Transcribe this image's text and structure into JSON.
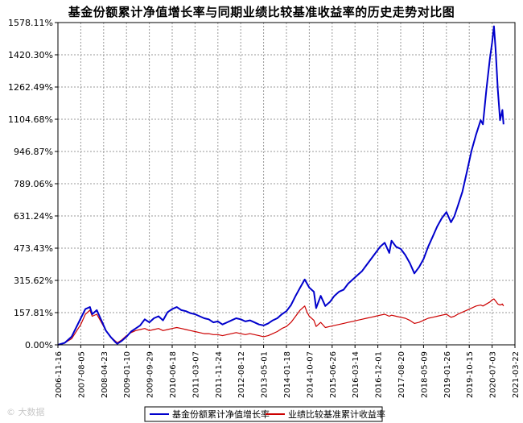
{
  "chart_data": {
    "type": "line",
    "title": "基金份额累计净值增长率与同期业绩比较基准收益率的历史走势对比图",
    "xlabel": "",
    "ylabel": "",
    "y_ticks": [
      "0.00%",
      "157.81%",
      "315.62%",
      "473.43%",
      "631.24%",
      "789.06%",
      "946.87%",
      "1104.68%",
      "1262.49%",
      "1420.30%",
      "1578.11%"
    ],
    "x_ticks": [
      "2006-11-16",
      "2007-08-05",
      "2008-04-23",
      "2009-01-10",
      "2009-09-29",
      "2010-06-18",
      "2011-03-07",
      "2011-11-24",
      "2012-08-12",
      "2013-05-01",
      "2014-01-18",
      "2014-10-07",
      "2015-06-26",
      "2016-03-14",
      "2016-12-01",
      "2017-08-20",
      "2018-05-09",
      "2019-01-26",
      "2019-10-15",
      "2020-07-03",
      "2021-03-22"
    ],
    "ylim": [
      0,
      1578.11
    ],
    "grid": true,
    "legend_position": "bottom",
    "series": [
      {
        "name": "基金份额累计净值增长率",
        "color": "#0000cc",
        "points": [
          [
            0,
            0
          ],
          [
            0.3,
            10
          ],
          [
            0.6,
            40
          ],
          [
            1.0,
            130
          ],
          [
            1.2,
            175
          ],
          [
            1.4,
            185
          ],
          [
            1.5,
            150
          ],
          [
            1.7,
            170
          ],
          [
            1.9,
            120
          ],
          [
            2.1,
            70
          ],
          [
            2.3,
            40
          ],
          [
            2.5,
            15
          ],
          [
            2.6,
            5
          ],
          [
            2.8,
            20
          ],
          [
            3.0,
            40
          ],
          [
            3.2,
            65
          ],
          [
            3.4,
            80
          ],
          [
            3.6,
            95
          ],
          [
            3.8,
            125
          ],
          [
            4.0,
            110
          ],
          [
            4.2,
            130
          ],
          [
            4.4,
            140
          ],
          [
            4.6,
            120
          ],
          [
            4.8,
            160
          ],
          [
            5.0,
            175
          ],
          [
            5.2,
            185
          ],
          [
            5.4,
            170
          ],
          [
            5.6,
            165
          ],
          [
            5.8,
            155
          ],
          [
            6.0,
            150
          ],
          [
            6.2,
            140
          ],
          [
            6.4,
            130
          ],
          [
            6.6,
            125
          ],
          [
            6.8,
            110
          ],
          [
            7.0,
            115
          ],
          [
            7.2,
            100
          ],
          [
            7.4,
            110
          ],
          [
            7.6,
            120
          ],
          [
            7.8,
            130
          ],
          [
            8.0,
            125
          ],
          [
            8.2,
            115
          ],
          [
            8.4,
            120
          ],
          [
            8.6,
            110
          ],
          [
            8.8,
            100
          ],
          [
            9.0,
            95
          ],
          [
            9.2,
            105
          ],
          [
            9.4,
            120
          ],
          [
            9.6,
            130
          ],
          [
            9.8,
            150
          ],
          [
            10.0,
            165
          ],
          [
            10.2,
            195
          ],
          [
            10.4,
            240
          ],
          [
            10.6,
            280
          ],
          [
            10.8,
            320
          ],
          [
            10.9,
            300
          ],
          [
            11.0,
            280
          ],
          [
            11.2,
            260
          ],
          [
            11.3,
            180
          ],
          [
            11.5,
            240
          ],
          [
            11.7,
            190
          ],
          [
            11.9,
            210
          ],
          [
            12.1,
            240
          ],
          [
            12.3,
            260
          ],
          [
            12.5,
            270
          ],
          [
            12.7,
            300
          ],
          [
            12.9,
            320
          ],
          [
            13.1,
            340
          ],
          [
            13.3,
            360
          ],
          [
            13.5,
            390
          ],
          [
            13.7,
            420
          ],
          [
            13.9,
            450
          ],
          [
            14.1,
            480
          ],
          [
            14.3,
            500
          ],
          [
            14.5,
            450
          ],
          [
            14.6,
            510
          ],
          [
            14.8,
            480
          ],
          [
            15.0,
            470
          ],
          [
            15.2,
            440
          ],
          [
            15.4,
            400
          ],
          [
            15.6,
            350
          ],
          [
            15.8,
            380
          ],
          [
            16.0,
            420
          ],
          [
            16.2,
            480
          ],
          [
            16.4,
            530
          ],
          [
            16.6,
            580
          ],
          [
            16.8,
            620
          ],
          [
            17.0,
            650
          ],
          [
            17.2,
            600
          ],
          [
            17.35,
            630
          ],
          [
            17.5,
            680
          ],
          [
            17.7,
            750
          ],
          [
            17.9,
            850
          ],
          [
            18.1,
            950
          ],
          [
            18.3,
            1030
          ],
          [
            18.5,
            1100
          ],
          [
            18.6,
            1080
          ],
          [
            18.75,
            1250
          ],
          [
            18.9,
            1400
          ],
          [
            19.0,
            1480
          ],
          [
            19.08,
            1560
          ],
          [
            19.15,
            1450
          ],
          [
            19.25,
            1250
          ],
          [
            19.35,
            1100
          ],
          [
            19.45,
            1150
          ],
          [
            19.5,
            1080
          ]
        ]
      },
      {
        "name": "业绩比较基准累计收益率",
        "color": "#cc0000",
        "points": [
          [
            0,
            0
          ],
          [
            0.3,
            10
          ],
          [
            0.6,
            30
          ],
          [
            1.0,
            100
          ],
          [
            1.2,
            150
          ],
          [
            1.4,
            170
          ],
          [
            1.5,
            140
          ],
          [
            1.7,
            150
          ],
          [
            1.9,
            110
          ],
          [
            2.1,
            70
          ],
          [
            2.3,
            40
          ],
          [
            2.5,
            20
          ],
          [
            2.6,
            10
          ],
          [
            2.8,
            25
          ],
          [
            3.0,
            45
          ],
          [
            3.2,
            60
          ],
          [
            3.4,
            70
          ],
          [
            3.6,
            75
          ],
          [
            3.8,
            80
          ],
          [
            4.0,
            70
          ],
          [
            4.2,
            75
          ],
          [
            4.4,
            80
          ],
          [
            4.6,
            70
          ],
          [
            4.8,
            75
          ],
          [
            5.0,
            80
          ],
          [
            5.2,
            85
          ],
          [
            5.4,
            80
          ],
          [
            5.6,
            75
          ],
          [
            5.8,
            70
          ],
          [
            6.0,
            65
          ],
          [
            6.2,
            60
          ],
          [
            6.4,
            55
          ],
          [
            6.6,
            55
          ],
          [
            6.8,
            50
          ],
          [
            7.0,
            50
          ],
          [
            7.2,
            45
          ],
          [
            7.4,
            50
          ],
          [
            7.6,
            55
          ],
          [
            7.8,
            60
          ],
          [
            8.0,
            55
          ],
          [
            8.2,
            50
          ],
          [
            8.4,
            55
          ],
          [
            8.6,
            50
          ],
          [
            8.8,
            45
          ],
          [
            9.0,
            40
          ],
          [
            9.2,
            45
          ],
          [
            9.4,
            55
          ],
          [
            9.6,
            65
          ],
          [
            9.8,
            80
          ],
          [
            10.0,
            90
          ],
          [
            10.2,
            110
          ],
          [
            10.4,
            140
          ],
          [
            10.6,
            170
          ],
          [
            10.8,
            190
          ],
          [
            10.9,
            160
          ],
          [
            11.0,
            140
          ],
          [
            11.2,
            120
          ],
          [
            11.3,
            90
          ],
          [
            11.5,
            110
          ],
          [
            11.7,
            85
          ],
          [
            11.9,
            90
          ],
          [
            12.1,
            95
          ],
          [
            12.3,
            100
          ],
          [
            12.5,
            105
          ],
          [
            12.7,
            110
          ],
          [
            12.9,
            115
          ],
          [
            13.1,
            120
          ],
          [
            13.3,
            125
          ],
          [
            13.5,
            130
          ],
          [
            13.7,
            135
          ],
          [
            13.9,
            140
          ],
          [
            14.1,
            145
          ],
          [
            14.3,
            150
          ],
          [
            14.5,
            140
          ],
          [
            14.6,
            145
          ],
          [
            14.8,
            140
          ],
          [
            15.0,
            135
          ],
          [
            15.2,
            130
          ],
          [
            15.4,
            120
          ],
          [
            15.6,
            105
          ],
          [
            15.8,
            110
          ],
          [
            16.0,
            120
          ],
          [
            16.2,
            130
          ],
          [
            16.4,
            135
          ],
          [
            16.6,
            140
          ],
          [
            16.8,
            145
          ],
          [
            17.0,
            150
          ],
          [
            17.2,
            135
          ],
          [
            17.35,
            140
          ],
          [
            17.5,
            150
          ],
          [
            17.7,
            160
          ],
          [
            17.9,
            170
          ],
          [
            18.1,
            180
          ],
          [
            18.3,
            190
          ],
          [
            18.5,
            195
          ],
          [
            18.6,
            190
          ],
          [
            18.75,
            200
          ],
          [
            18.9,
            210
          ],
          [
            19.0,
            220
          ],
          [
            19.08,
            225
          ],
          [
            19.15,
            215
          ],
          [
            19.25,
            200
          ],
          [
            19.35,
            195
          ],
          [
            19.45,
            200
          ],
          [
            19.5,
            190
          ]
        ]
      }
    ]
  },
  "watermark": "© 大数据"
}
